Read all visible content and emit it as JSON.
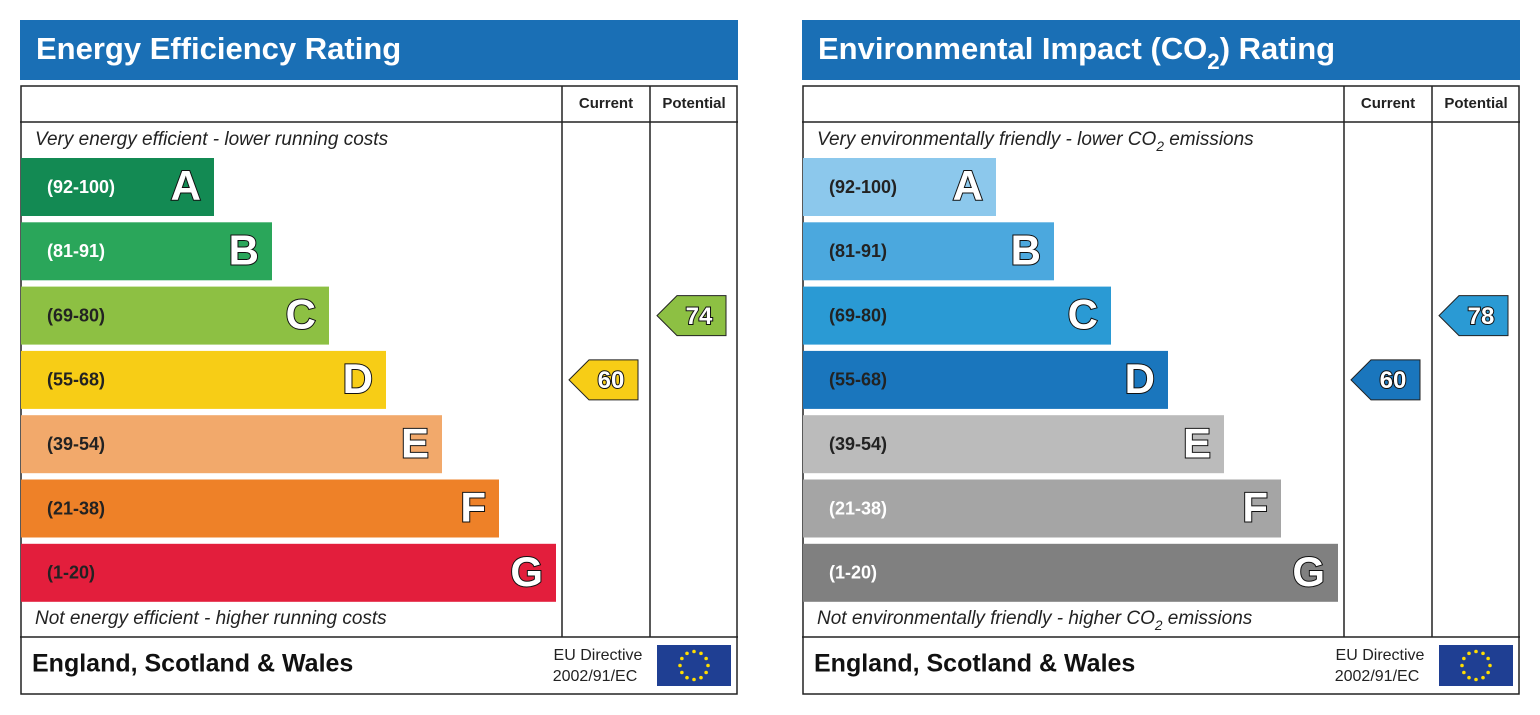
{
  "panels": [
    {
      "title": [
        "Energy Efficiency Rating"
      ],
      "columns": [
        "Current",
        "Potential"
      ],
      "top_note": [
        "Very energy efficient - lower running costs"
      ],
      "bottom_note": [
        "Not energy efficient - higher running costs"
      ],
      "bands": [
        {
          "range": "(92-100)",
          "letter": "A",
          "color": "#138a53",
          "text_color": "#ffffff"
        },
        {
          "range": "(81-91)",
          "letter": "B",
          "color": "#2aa65a",
          "text_color": "#ffffff"
        },
        {
          "range": "(69-80)",
          "letter": "C",
          "color": "#8dc043",
          "text_color": "#222222"
        },
        {
          "range": "(55-68)",
          "letter": "D",
          "color": "#f7cd16",
          "text_color": "#222222"
        },
        {
          "range": "(39-54)",
          "letter": "E",
          "color": "#f2a96b",
          "text_color": "#222222"
        },
        {
          "range": "(21-38)",
          "letter": "F",
          "color": "#ee8128",
          "text_color": "#222222"
        },
        {
          "range": "(1-20)",
          "letter": "G",
          "color": "#e31e3c",
          "text_color": "#222222"
        }
      ],
      "current": {
        "value": 60,
        "color": "#f7cd16"
      },
      "potential": {
        "value": 74,
        "color": "#8dc043"
      },
      "footer": {
        "region": "England, Scotland & Wales",
        "directive": "EU Directive",
        "code": "2002/91/EC"
      }
    },
    {
      "title": [
        "Environmental Impact (CO",
        "2",
        ") Rating"
      ],
      "columns": [
        "Current",
        "Potential"
      ],
      "top_note": [
        "Very environmentally friendly - lower CO",
        "2",
        " emissions"
      ],
      "bottom_note": [
        "Not environmentally friendly - higher CO",
        "2",
        " emissions"
      ],
      "bands": [
        {
          "range": "(92-100)",
          "letter": "A",
          "color": "#8cc8ec",
          "text_color": "#222222"
        },
        {
          "range": "(81-91)",
          "letter": "B",
          "color": "#4ba8de",
          "text_color": "#222222"
        },
        {
          "range": "(69-80)",
          "letter": "C",
          "color": "#2a9ad4",
          "text_color": "#222222"
        },
        {
          "range": "(55-68)",
          "letter": "D",
          "color": "#1a76bd",
          "text_color": "#222222"
        },
        {
          "range": "(39-54)",
          "letter": "E",
          "color": "#bbbbbb",
          "text_color": "#222222"
        },
        {
          "range": "(21-38)",
          "letter": "F",
          "color": "#a5a5a5",
          "text_color": "#ffffff"
        },
        {
          "range": "(1-20)",
          "letter": "G",
          "color": "#808080",
          "text_color": "#ffffff"
        }
      ],
      "current": {
        "value": 60,
        "color": "#1a76bd"
      },
      "potential": {
        "value": 78,
        "color": "#2a9ad4"
      },
      "footer": {
        "region": "England, Scotland & Wales",
        "directive": "EU Directive",
        "code": "2002/91/EC"
      }
    }
  ]
}
